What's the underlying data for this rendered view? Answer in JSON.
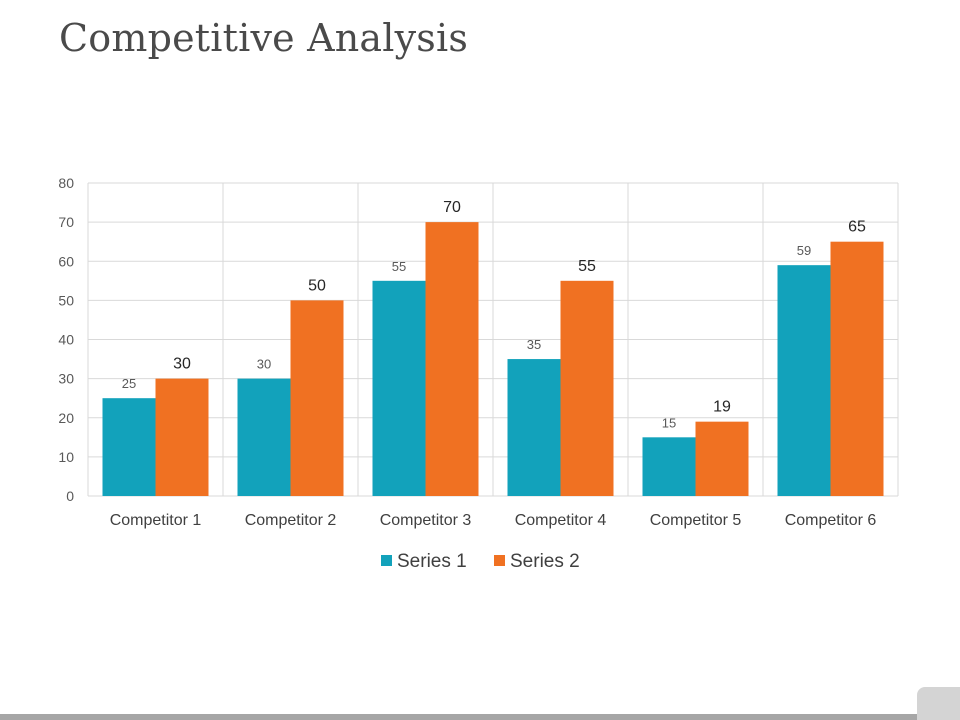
{
  "slide": {
    "title": "Competitive Analysis"
  },
  "chart_data": {
    "type": "bar",
    "categories": [
      "Competitor 1",
      "Competitor 2",
      "Competitor 3",
      "Competitor 4",
      "Competitor 5",
      "Competitor 6"
    ],
    "series": [
      {
        "name": "Series 1",
        "values": [
          25,
          30,
          55,
          35,
          15,
          59
        ],
        "color": "#12a2bb"
      },
      {
        "name": "Series 2",
        "values": [
          30,
          50,
          70,
          55,
          19,
          65
        ],
        "color": "#f07122"
      }
    ],
    "ylim": [
      0,
      80
    ],
    "yticks": [
      "0",
      "10",
      "20",
      "30",
      "40",
      "50",
      "60",
      "70",
      "80"
    ],
    "xlabel": "",
    "ylabel": "",
    "grid": true,
    "legend_position": "bottom",
    "data_labels": true
  }
}
